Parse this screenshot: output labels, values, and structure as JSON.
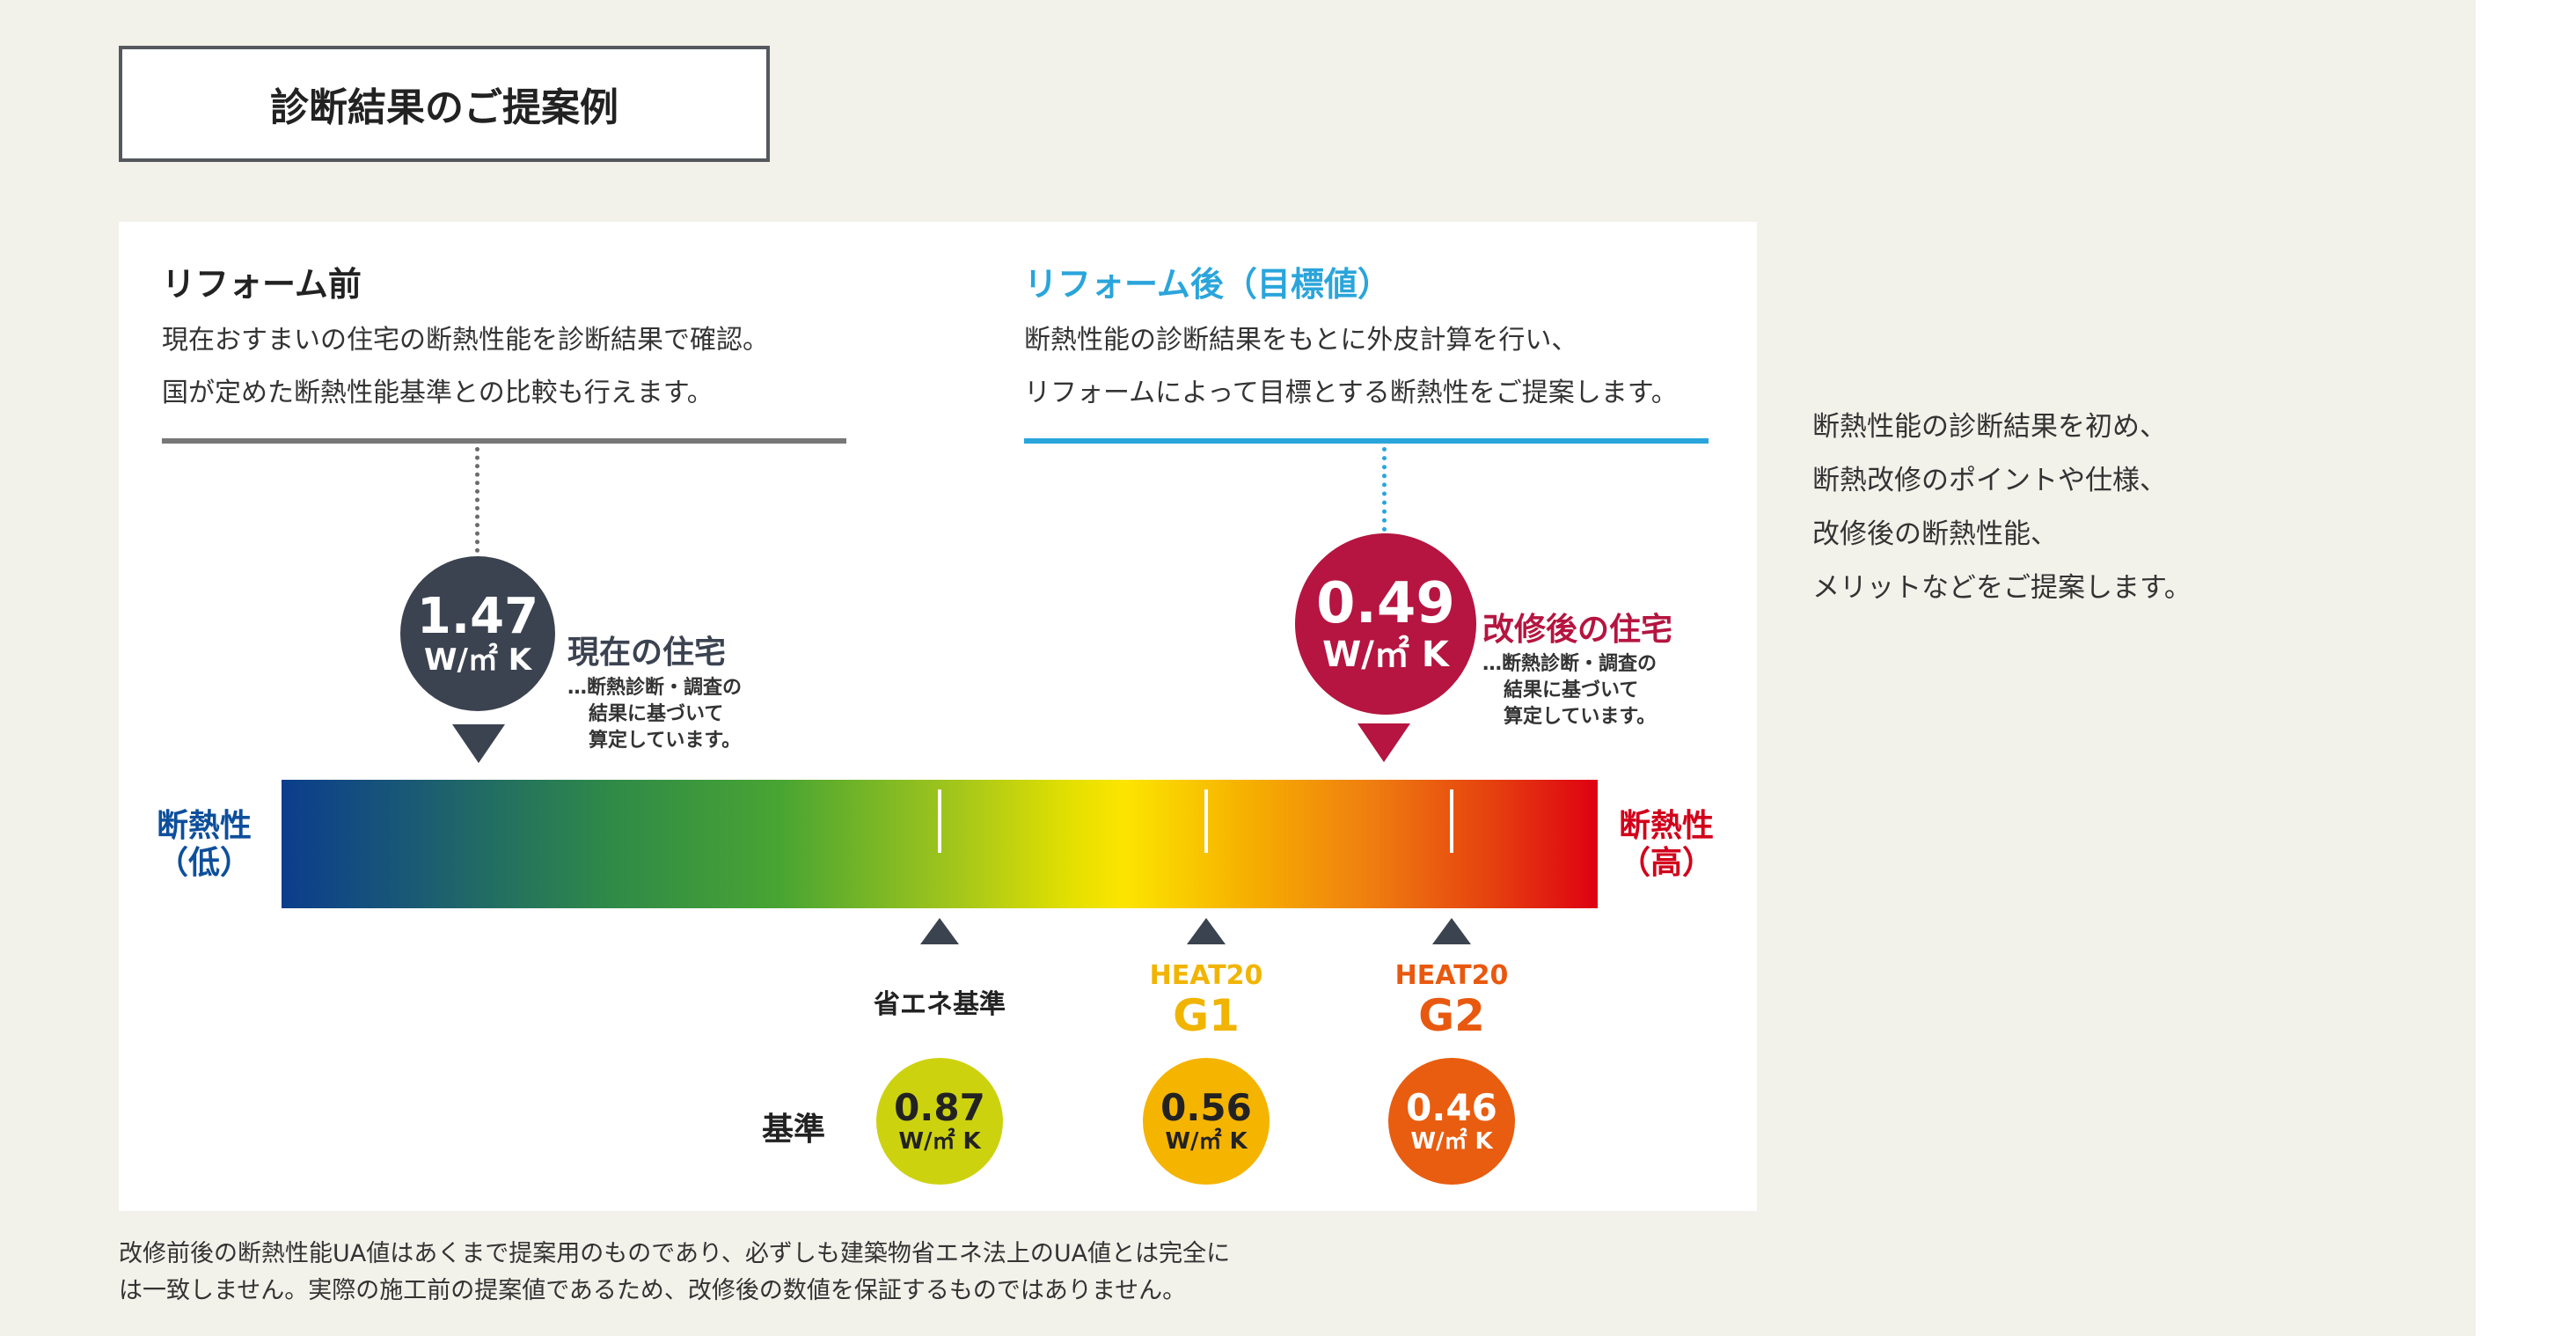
{
  "page_title": "診断結果のご提案例",
  "before": {
    "heading": "リフォーム前",
    "desc_lines": [
      "現在おすまいの住宅の断熱性能を診断結果で確認。",
      "国が定めた断熱性能基準との比較も行えます。"
    ],
    "value": "1.47",
    "unit": "W/㎡ K",
    "label": "現在の住宅",
    "note_lines": [
      "…断熱診断・調査の",
      "結果に基づいて",
      "算定しています。"
    ]
  },
  "after": {
    "heading": "リフォーム後（目標値）",
    "desc_lines": [
      "断熱性能の診断結果をもとに外皮計算を行い、",
      "リフォームによって目標とする断熱性をご提案します。"
    ],
    "value": "0.49",
    "unit": "W/㎡ K",
    "label": "改修後の住宅",
    "note_lines": [
      "…断熱診断・調査の",
      "結果に基づいて",
      "算定しています。"
    ]
  },
  "scale": {
    "low_label_lines": [
      "断熱性",
      "（低）"
    ],
    "high_label_lines": [
      "断熱性",
      "（高）"
    ],
    "standard_row_label": "基準"
  },
  "standards": [
    {
      "name_lines": [
        "省エネ基準"
      ],
      "value": "0.87",
      "unit": "W/㎡ K",
      "color": "#cdd20f"
    },
    {
      "name_lines": [
        "HEAT20",
        "G1"
      ],
      "value": "0.56",
      "unit": "W/㎡ K",
      "color": "#f5b400"
    },
    {
      "name_lines": [
        "HEAT20",
        "G2"
      ],
      "value": "0.46",
      "unit": "W/㎡ K",
      "color": "#e85d10"
    }
  ],
  "side_text_lines": [
    "断熱性能の診断結果を初め、",
    "断熱改修のポイントや仕様、",
    "改修後の断熱性能、",
    "メリットなどをご提案します。"
  ],
  "footnote_lines": [
    "改修前後の断熱性能UA値はあくまで提案用のものであり、必ずしも建築物省エネ法上のUA値とは完全に",
    "は一致しません。実際の施工前の提案値であるため、改修後の数値を保証するものではありません。"
  ],
  "colors": {
    "before_dark": "#3b4250",
    "after_red": "#b51540",
    "after_blue": "#2aa5db",
    "low_blue": "#0d4f9c",
    "high_red": "#d2001a",
    "g1_orange": "#f1b400",
    "g2_orange": "#e8590f"
  }
}
